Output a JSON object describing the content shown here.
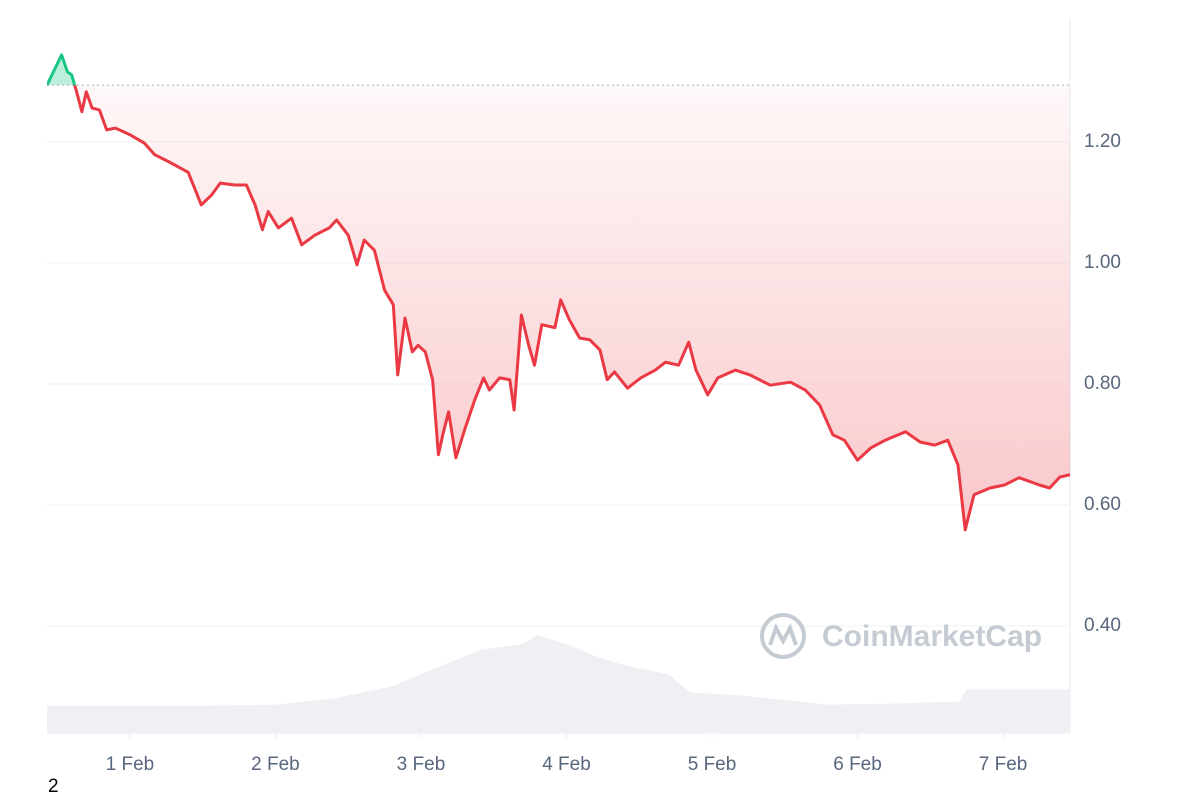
{
  "chart_data": {
    "type": "line",
    "watermark": "CoinMarketCap",
    "footnote": "2",
    "reference_line": 1.294,
    "up_color": "#16c784",
    "down_color": "#ea3943",
    "xlim": [
      0.43,
      7.46
    ],
    "xticks": [
      {
        "value": 1,
        "label": "1 Feb"
      },
      {
        "value": 2,
        "label": "2 Feb"
      },
      {
        "value": 3,
        "label": "3 Feb"
      },
      {
        "value": 4,
        "label": "4 Feb"
      },
      {
        "value": 5,
        "label": "5 Feb"
      },
      {
        "value": 6,
        "label": "6 Feb"
      },
      {
        "value": 7,
        "label": "7 Feb"
      }
    ],
    "ylim": [
      0.223,
      1.405
    ],
    "yticks": [
      {
        "value": 0.4,
        "label": "0.40"
      },
      {
        "value": 0.6,
        "label": "0.60"
      },
      {
        "value": 0.8,
        "label": "0.80"
      },
      {
        "value": 1.0,
        "label": "1.00"
      },
      {
        "value": 1.2,
        "label": "1.20"
      }
    ],
    "grid": true,
    "series": [
      {
        "kind": "price",
        "x": [
          0.43,
          0.48,
          0.53,
          0.57,
          0.6,
          0.63,
          0.67,
          0.7,
          0.74,
          0.79,
          0.84,
          0.9,
          1.0,
          1.1,
          1.17,
          1.27,
          1.4,
          1.49,
          1.56,
          1.62,
          1.72,
          1.8,
          1.86,
          1.91,
          1.95,
          2.02,
          2.11,
          2.18,
          2.27,
          2.37,
          2.42,
          2.5,
          2.56,
          2.61,
          2.68,
          2.75,
          2.81,
          2.84,
          2.89,
          2.94,
          2.98,
          3.03,
          3.08,
          3.12,
          3.15,
          3.19,
          3.24,
          3.3,
          3.37,
          3.43,
          3.47,
          3.54,
          3.61,
          3.64,
          3.69,
          3.74,
          3.78,
          3.83,
          3.92,
          3.96,
          4.02,
          4.09,
          4.16,
          4.23,
          4.28,
          4.33,
          4.42,
          4.51,
          4.61,
          4.68,
          4.77,
          4.84,
          4.89,
          4.97,
          5.04,
          5.16,
          5.26,
          5.4,
          5.54,
          5.64,
          5.74,
          5.83,
          5.91,
          6.0,
          6.09,
          6.19,
          6.33,
          6.43,
          6.53,
          6.62,
          6.69,
          6.74,
          6.8,
          6.91,
          7.01,
          7.11,
          7.25,
          7.32,
          7.39,
          7.46
        ],
        "values": [
          1.294,
          1.319,
          1.344,
          1.316,
          1.311,
          1.286,
          1.25,
          1.283,
          1.256,
          1.253,
          1.22,
          1.223,
          1.212,
          1.198,
          1.179,
          1.167,
          1.15,
          1.096,
          1.112,
          1.132,
          1.129,
          1.129,
          1.096,
          1.055,
          1.085,
          1.058,
          1.074,
          1.03,
          1.046,
          1.058,
          1.071,
          1.046,
          0.997,
          1.038,
          1.021,
          0.955,
          0.931,
          0.815,
          0.909,
          0.853,
          0.864,
          0.853,
          0.807,
          0.683,
          0.716,
          0.754,
          0.678,
          0.724,
          0.774,
          0.81,
          0.79,
          0.81,
          0.807,
          0.757,
          0.914,
          0.864,
          0.831,
          0.898,
          0.893,
          0.939,
          0.906,
          0.876,
          0.873,
          0.856,
          0.807,
          0.82,
          0.793,
          0.81,
          0.823,
          0.836,
          0.831,
          0.869,
          0.823,
          0.782,
          0.81,
          0.823,
          0.815,
          0.798,
          0.803,
          0.79,
          0.765,
          0.716,
          0.707,
          0.674,
          0.694,
          0.707,
          0.721,
          0.704,
          0.699,
          0.707,
          0.666,
          0.559,
          0.617,
          0.628,
          0.633,
          0.645,
          0.633,
          0.628,
          0.646,
          0.65
        ]
      },
      {
        "kind": "volume",
        "color": "#eef0f3",
        "x": [
          0.43,
          1.5,
          2.0,
          2.4,
          2.8,
          2.9,
          3.2,
          3.4,
          3.7,
          3.8,
          4.0,
          4.2,
          4.4,
          4.7,
          4.85,
          5.2,
          5.8,
          6.3,
          6.7,
          6.75,
          7.46
        ],
        "values": [
          0.268,
          0.268,
          0.27,
          0.28,
          0.3,
          0.31,
          0.34,
          0.36,
          0.37,
          0.385,
          0.37,
          0.35,
          0.335,
          0.32,
          0.29,
          0.285,
          0.27,
          0.272,
          0.275,
          0.295,
          0.295
        ]
      }
    ]
  }
}
